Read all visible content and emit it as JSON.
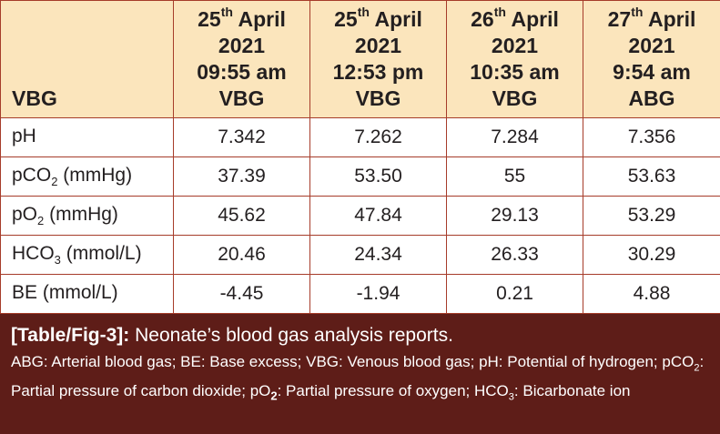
{
  "table": {
    "corner_label": "VBG",
    "columns": [
      {
        "day": "25",
        "sup": "th",
        "month": "April",
        "year": "2021",
        "time": "09:55 am",
        "type": "VBG"
      },
      {
        "day": "25",
        "sup": "th",
        "month": "April",
        "year": "2021",
        "time": "12:53 pm",
        "type": "VBG"
      },
      {
        "day": "26",
        "sup": "th",
        "month": "April",
        "year": "2021",
        "time": "10:35 am",
        "type": "VBG"
      },
      {
        "day": "27",
        "sup": "th",
        "month": "April",
        "year": "2021",
        "time": "9:54 am",
        "type": "ABG"
      }
    ],
    "rows": [
      {
        "param_main": "pH",
        "param_sub": "",
        "param_unit": "",
        "values": [
          "7.342",
          "7.262",
          "7.284",
          "7.356"
        ]
      },
      {
        "param_main": "pCO",
        "param_sub": "2",
        "param_unit": " (mmHg)",
        "values": [
          "37.39",
          "53.50",
          "55",
          "53.63"
        ]
      },
      {
        "param_main": "pO",
        "param_sub": "2",
        "param_unit": " (mmHg)",
        "values": [
          "45.62",
          "47.84",
          "29.13",
          "53.29"
        ]
      },
      {
        "param_main": "HCO",
        "param_sub": "3",
        "param_unit": " (mmol/L)",
        "values": [
          "20.46",
          "24.34",
          "26.33",
          "30.29"
        ]
      },
      {
        "param_main": "BE (mmol/L)",
        "param_sub": "",
        "param_unit": "",
        "values": [
          "-4.45",
          "-1.94",
          "0.21",
          "4.88"
        ]
      }
    ]
  },
  "caption": {
    "label": "[Table/Fig-3]:",
    "title": "Neonate’s blood gas analysis reports.",
    "notes": {
      "t1": "ABG: Arterial blood gas; BE: Base excess; VBG: Venous blood gas; pH: Potential of hydrogen; pCO",
      "s1": "2",
      "t2": ": Partial pressure of carbon dioxide; pO",
      "s2": "2",
      "t3": ": Partial pressure of oxygen; HCO",
      "s3": "3",
      "t4": ": Bicarbonate ion"
    }
  }
}
